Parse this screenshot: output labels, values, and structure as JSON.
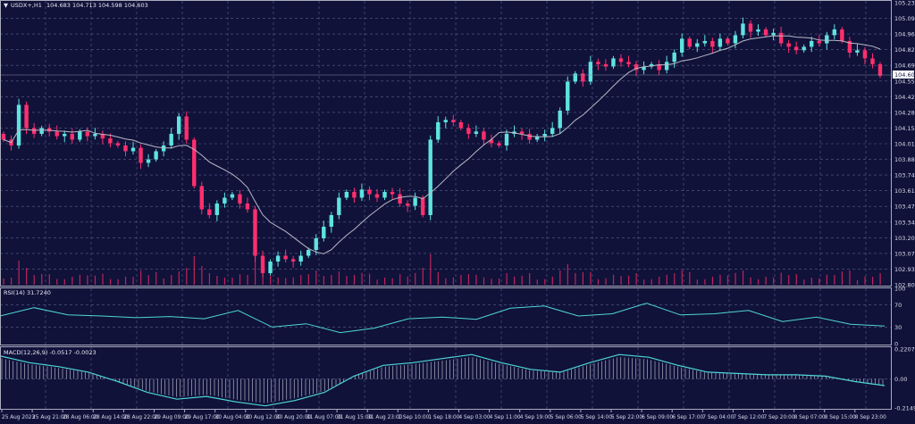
{
  "header": {
    "symbol_label": "USDX+,H1",
    "ohlc": "104.683 104.713 104.598 104.603"
  },
  "colors": {
    "background": "#10123a",
    "bull": "#5fe3df",
    "bear": "#ff2f6d",
    "grid": "#596089",
    "ma": "#b8b8c4",
    "indicator": "#4fd6d6"
  },
  "chart_data": [
    {
      "type": "candlestick",
      "title": "USDX+,H1",
      "price_axis_ticks": [
        "105.230",
        "105.095",
        "104.960",
        "104.825",
        "104.690",
        "104.555",
        "104.420",
        "104.285",
        "104.150",
        "104.015",
        "103.880",
        "103.745",
        "103.610",
        "103.475",
        "103.340",
        "103.205",
        "103.070",
        "102.935",
        "102.800"
      ],
      "ylim": [
        102.8,
        105.23
      ],
      "current_price": "104.603",
      "time_axis_ticks": [
        "25 Aug 2023",
        "25 Aug 21:00",
        "28 Aug 06:00",
        "28 Aug 14:00",
        "28 Aug 22:00",
        "29 Aug 09:00",
        "29 Aug 17:00",
        "30 Aug 04:00",
        "30 Aug 12:00",
        "30 Aug 20:00",
        "31 Aug 07:00",
        "31 Aug 15:00",
        "31 Aug 23:00",
        "1 Sep 10:00",
        "1 Sep 18:00",
        "4 Sep 03:00",
        "4 Sep 11:00",
        "4 Sep 19:00",
        "5 Sep 06:00",
        "5 Sep 14:00",
        "5 Sep 22:00",
        "6 Sep 09:00",
        "6 Sep 17:00",
        "7 Sep 04:00",
        "7 Sep 12:00",
        "7 Sep 20:00",
        "8 Sep 07:00",
        "8 Sep 15:00",
        "8 Sep 23:00"
      ],
      "closes": [
        104.05,
        104.0,
        104.35,
        104.15,
        104.1,
        104.15,
        104.12,
        104.08,
        104.1,
        104.05,
        104.12,
        104.08,
        104.1,
        104.06,
        104.02,
        104.0,
        103.95,
        103.98,
        103.85,
        103.88,
        103.95,
        104.0,
        104.1,
        104.25,
        104.05,
        103.65,
        103.45,
        103.4,
        103.5,
        103.55,
        103.58,
        103.5,
        103.45,
        103.05,
        102.9,
        103.0,
        103.05,
        103.02,
        103.0,
        103.05,
        103.1,
        103.2,
        103.3,
        103.4,
        103.55,
        103.6,
        103.55,
        103.62,
        103.58,
        103.55,
        103.6,
        103.58,
        103.5,
        103.48,
        103.55,
        103.4,
        104.05,
        104.2,
        104.22,
        104.2,
        104.15,
        104.1,
        104.12,
        104.05,
        104.02,
        104.0,
        104.1,
        104.12,
        104.1,
        104.05,
        104.08,
        104.1,
        104.15,
        104.3,
        104.55,
        104.62,
        104.55,
        104.72,
        104.7,
        104.68,
        104.75,
        104.72,
        104.7,
        104.65,
        104.68,
        104.7,
        104.65,
        104.72,
        104.8,
        104.92,
        104.85,
        104.88,
        104.9,
        104.85,
        104.92,
        104.88,
        104.95,
        105.05,
        104.98,
        105.0,
        104.95,
        104.97,
        104.88,
        104.85,
        104.82,
        104.85,
        104.9,
        104.88,
        104.95,
        105.0,
        104.9,
        104.8,
        104.82,
        104.75,
        104.7,
        104.6
      ],
      "moving_average": "on"
    },
    {
      "type": "line",
      "title": "RSI(14) 31.7240",
      "ylim": [
        0,
        100
      ],
      "ticks": [
        "100",
        "70",
        "30",
        "0"
      ],
      "values": [
        50,
        65,
        52,
        50,
        47,
        49,
        45,
        60,
        30,
        36,
        20,
        28,
        45,
        48,
        44,
        64,
        68,
        50,
        54,
        73,
        52,
        54,
        60,
        40,
        48,
        35,
        31.7
      ]
    },
    {
      "type": "line",
      "title": "MACD(12,26,9) -0.0517 -0.0023",
      "ylim": [
        -0.2149,
        0.2207
      ],
      "ticks": [
        "0.2207",
        "0.00",
        "-0.2149"
      ],
      "values": [
        0.17,
        0.12,
        0.09,
        0.05,
        -0.02,
        -0.1,
        -0.15,
        -0.13,
        -0.17,
        -0.2,
        -0.16,
        -0.1,
        0.02,
        0.1,
        0.12,
        0.15,
        0.18,
        0.12,
        0.07,
        0.05,
        0.12,
        0.18,
        0.16,
        0.1,
        0.05,
        0.04,
        0.03,
        0.03,
        0.02,
        -0.02,
        -0.05
      ]
    }
  ]
}
